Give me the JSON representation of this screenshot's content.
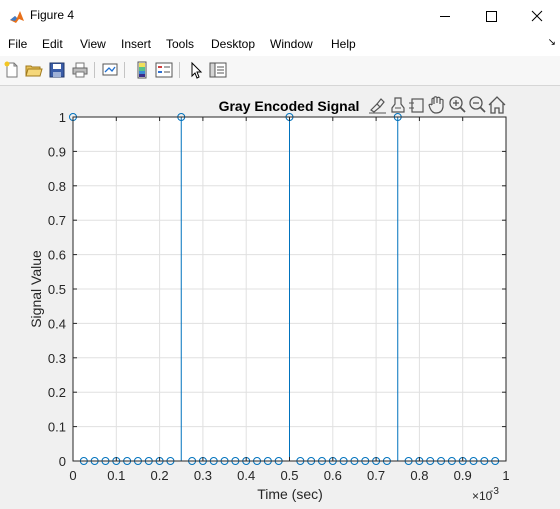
{
  "window": {
    "title": "Figure 4",
    "controls": {
      "minimize": "minimize",
      "maximize": "maximize",
      "close": "close"
    }
  },
  "menu": {
    "items": [
      "File",
      "Edit",
      "View",
      "Insert",
      "Tools",
      "Desktop",
      "Window",
      "Help"
    ]
  },
  "toolbar": {
    "buttons": [
      "new-figure-icon",
      "open-file-icon",
      "save-icon",
      "print-icon",
      "link-plot-icon",
      "colorbar-icon",
      "legend-icon",
      "edit-plot-pointer-icon",
      "property-inspector-icon"
    ]
  },
  "axes_toolbar": {
    "buttons": [
      "brush-icon",
      "data-tips-icon",
      "rotate-3d-icon",
      "pan-hand-icon",
      "zoom-in-icon",
      "zoom-out-icon",
      "home-icon"
    ]
  },
  "colors": {
    "stem": "#0072bd",
    "grid": "#e0e0e0",
    "axis": "#262626",
    "plot_bg": "#ffffff",
    "figure_bg": "#f0f0f0"
  },
  "chart_data": {
    "type": "stem",
    "title": "Gray Encoded Signal",
    "xlabel": "Time (sec)",
    "ylabel": "Signal Value",
    "x_multiplier_label": "×10",
    "x_multiplier_exponent": "-3",
    "xlim": [
      0,
      1
    ],
    "ylim": [
      0,
      1
    ],
    "xticks": [
      "0",
      "0.1",
      "0.2",
      "0.3",
      "0.4",
      "0.5",
      "0.6",
      "0.7",
      "0.8",
      "0.9",
      "1"
    ],
    "yticks": [
      "0",
      "0.1",
      "0.2",
      "0.3",
      "0.4",
      "0.5",
      "0.6",
      "0.7",
      "0.8",
      "0.9",
      "1"
    ],
    "grid": true,
    "stem_step": 0.025,
    "stem_count": 40,
    "ones_at": [
      0,
      0.25,
      0.5,
      0.75
    ],
    "x_units_scale": 0.001
  }
}
